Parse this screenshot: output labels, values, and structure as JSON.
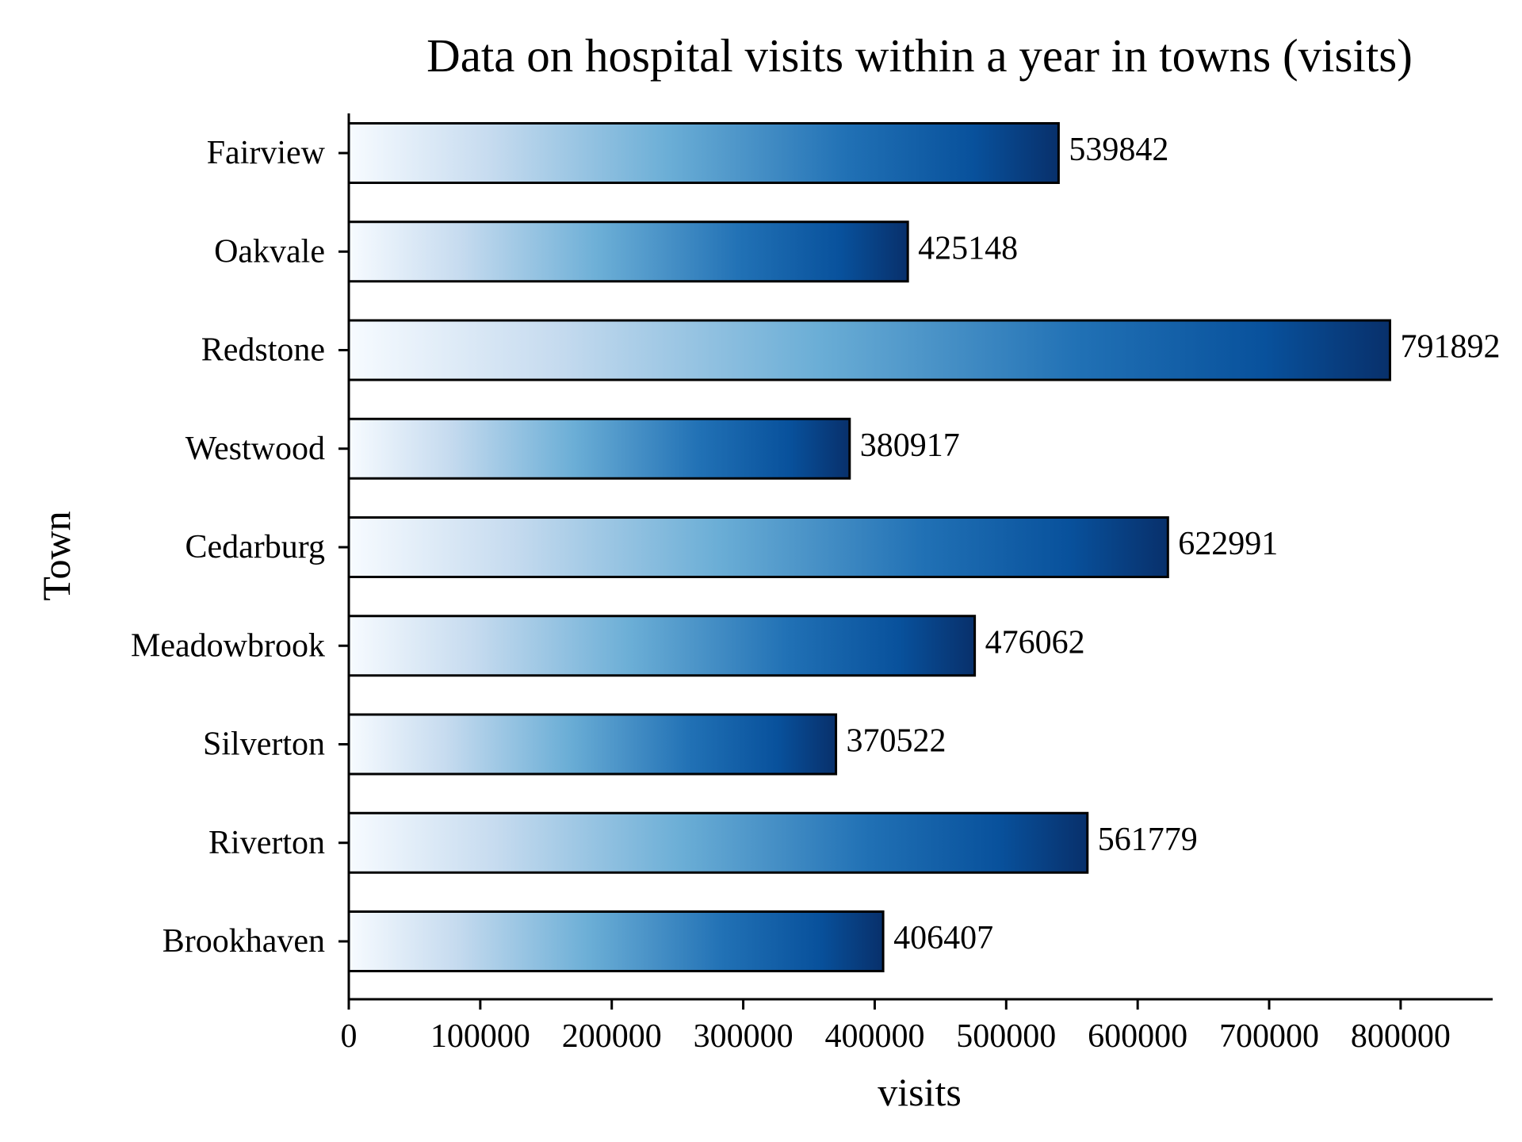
{
  "chart_data": {
    "type": "bar",
    "orientation": "horizontal",
    "title": "Data on hospital visits within a year in towns (visits)",
    "xlabel": "visits",
    "ylabel": "Town",
    "categories": [
      "Fairview",
      "Oakvale",
      "Redstone",
      "Westwood",
      "Cedarburg",
      "Meadowbrook",
      "Silverton",
      "Riverton",
      "Brookhaven"
    ],
    "values": [
      539842,
      425148,
      791892,
      380917,
      622991,
      476062,
      370522,
      561779,
      406407
    ],
    "data_labels": [
      "539842",
      "425148",
      "791892",
      "380917",
      "622991",
      "476062",
      "370522",
      "561779",
      "406407"
    ],
    "xlim": [
      0,
      870000
    ],
    "xticks": [
      0,
      100000,
      200000,
      300000,
      400000,
      500000,
      600000,
      700000,
      800000
    ],
    "xtick_labels": [
      "0",
      "100000",
      "200000",
      "300000",
      "400000",
      "500000",
      "600000",
      "700000",
      "800000"
    ],
    "grid": false,
    "legend": "none",
    "bar_colormap": "Blues gradient (light to dark, left to right)",
    "colors": {
      "gradient_start": "#f7fbff",
      "gradient_mid_light": "#c6dbef",
      "gradient_mid": "#6baed6",
      "gradient_mid_dark": "#2171b5",
      "gradient_dark": "#08519c",
      "gradient_end": "#08306b",
      "edge": "#000000"
    }
  }
}
